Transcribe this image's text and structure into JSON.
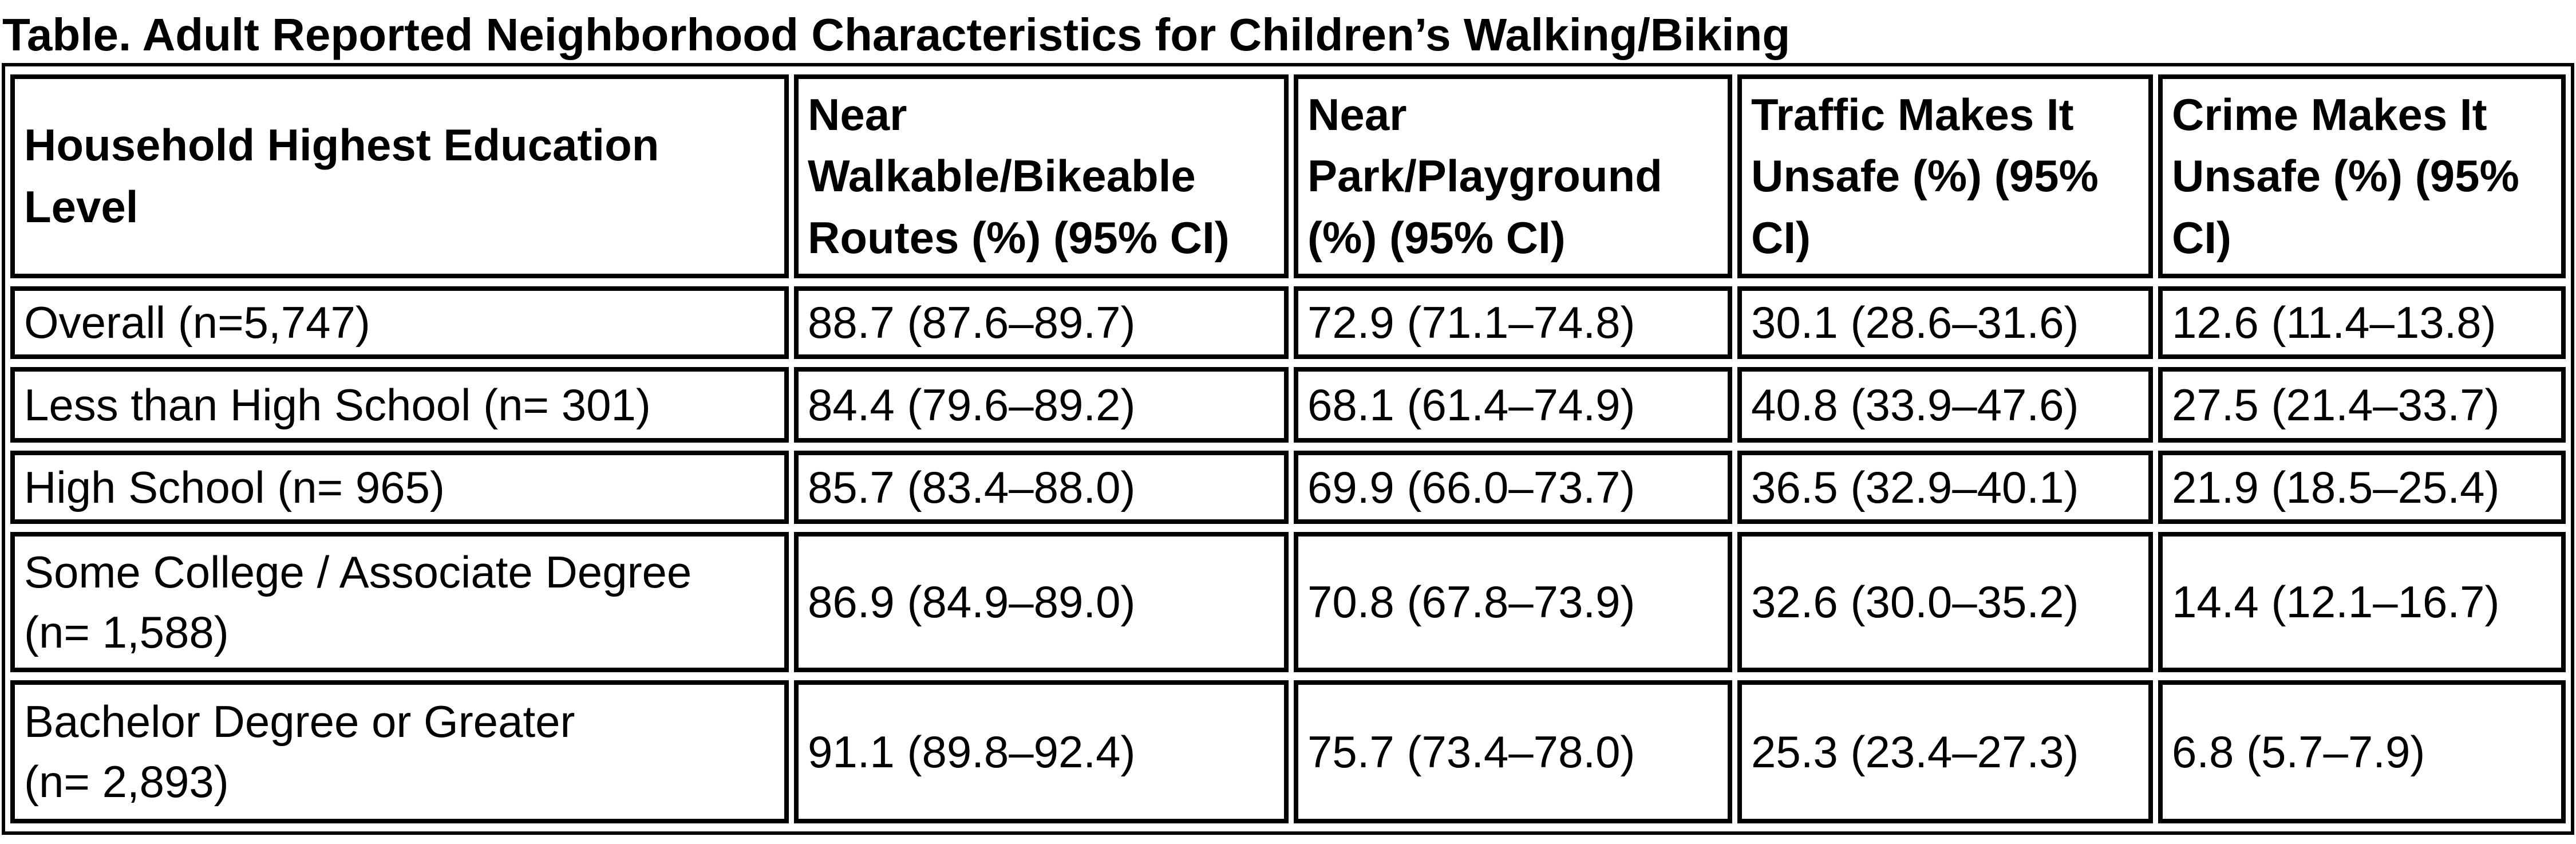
{
  "title": "Table. Adult Reported Neighborhood Characteristics for Children’s Walking/Biking",
  "colors": {
    "background": "#ffffff",
    "border": "#000000",
    "text": "#000000"
  },
  "table": {
    "columns": [
      {
        "key": "education",
        "label": "Household Highest Education\nLevel"
      },
      {
        "key": "near_walkable",
        "label": "Near\nWalkable/Bikeable\nRoutes (%) (95% CI)"
      },
      {
        "key": "near_park",
        "label": "Near\nPark/Playground\n(%) (95% CI)"
      },
      {
        "key": "traffic_unsafe",
        "label": "Traffic Makes It\nUnsafe (%) (95%\nCI)"
      },
      {
        "key": "crime_unsafe",
        "label": "Crime Makes It\nUnsafe (%) (95%\nCI)"
      }
    ],
    "rows": [
      {
        "label": "Overall (n=5,747)",
        "near_walkable": "88.7 (87.6–89.7)",
        "near_park": "72.9 (71.1–74.8)",
        "traffic_unsafe": "30.1 (28.6–31.6)",
        "crime_unsafe": "12.6 (11.4–13.8)"
      },
      {
        "label": "Less than High School (n= 301)",
        "near_walkable": "84.4 (79.6–89.2)",
        "near_park": "68.1 (61.4–74.9)",
        "traffic_unsafe": "40.8 (33.9–47.6)",
        "crime_unsafe": "27.5 (21.4–33.7)"
      },
      {
        "label": "High School (n= 965)",
        "near_walkable": "85.7 (83.4–88.0)",
        "near_park": "69.9 (66.0–73.7)",
        "traffic_unsafe": "36.5 (32.9–40.1)",
        "crime_unsafe": "21.9 (18.5–25.4)"
      },
      {
        "label": "Some College / Associate Degree\n(n= 1,588)",
        "near_walkable": "86.9 (84.9–89.0)",
        "near_park": "70.8 (67.8–73.9)",
        "traffic_unsafe": "32.6 (30.0–35.2)",
        "crime_unsafe": "14.4 (12.1–16.7)"
      },
      {
        "label": "Bachelor Degree or Greater\n(n= 2,893)",
        "near_walkable": "91.1 (89.8–92.4)",
        "near_park": "75.7 (73.4–78.0)",
        "traffic_unsafe": "25.3 (23.4–27.3)",
        "crime_unsafe": "6.8 (5.7–7.9)"
      }
    ]
  }
}
